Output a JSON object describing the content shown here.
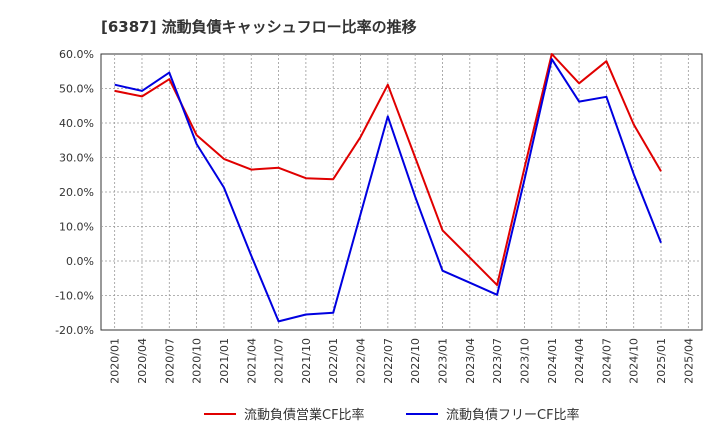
{
  "chart_data": {
    "type": "line",
    "title": "[6387]  流動負債キャッシュフロー比率の推移",
    "xlabel": "",
    "ylabel": "",
    "ylim": [
      -20,
      60
    ],
    "y_ticks": [
      "60.0%",
      "50.0%",
      "40.0%",
      "30.0%",
      "20.0%",
      "10.0%",
      "0.0%",
      "-10.0%",
      "-20.0%"
    ],
    "y_tick_values": [
      60,
      50,
      40,
      30,
      20,
      10,
      0,
      -10,
      -20
    ],
    "x": [
      "2020/01",
      "2020/04",
      "2020/07",
      "2020/10",
      "2021/01",
      "2021/04",
      "2021/07",
      "2021/10",
      "2022/01",
      "2022/04",
      "2022/07",
      "2022/10",
      "2023/01",
      "2023/04",
      "2023/07",
      "2023/10",
      "2024/01",
      "2024/04",
      "2024/07",
      "2024/10",
      "2025/01",
      "2025/04"
    ],
    "grid": true,
    "legend_position": "bottom",
    "series": [
      {
        "name": "流動負債営業CF比率",
        "color": "#e00000",
        "values": [
          49.3,
          47.7,
          52.7,
          36.5,
          29.6,
          26.5,
          27.0,
          24.0,
          23.7,
          35.9,
          51.1,
          30.0,
          8.9,
          1.0,
          -7.0,
          26.9,
          60.0,
          51.5,
          57.9,
          39.6,
          26.0,
          null
        ]
      },
      {
        "name": "流動負債フリーCF比率",
        "color": "#0000e0",
        "values": [
          51.1,
          49.3,
          54.6,
          33.9,
          21.3,
          1.5,
          -17.5,
          -15.5,
          -15.0,
          13.5,
          41.9,
          18.6,
          -2.8,
          -6.3,
          -9.8,
          23.5,
          58.5,
          46.2,
          47.6,
          25.2,
          5.3,
          null
        ]
      }
    ]
  }
}
